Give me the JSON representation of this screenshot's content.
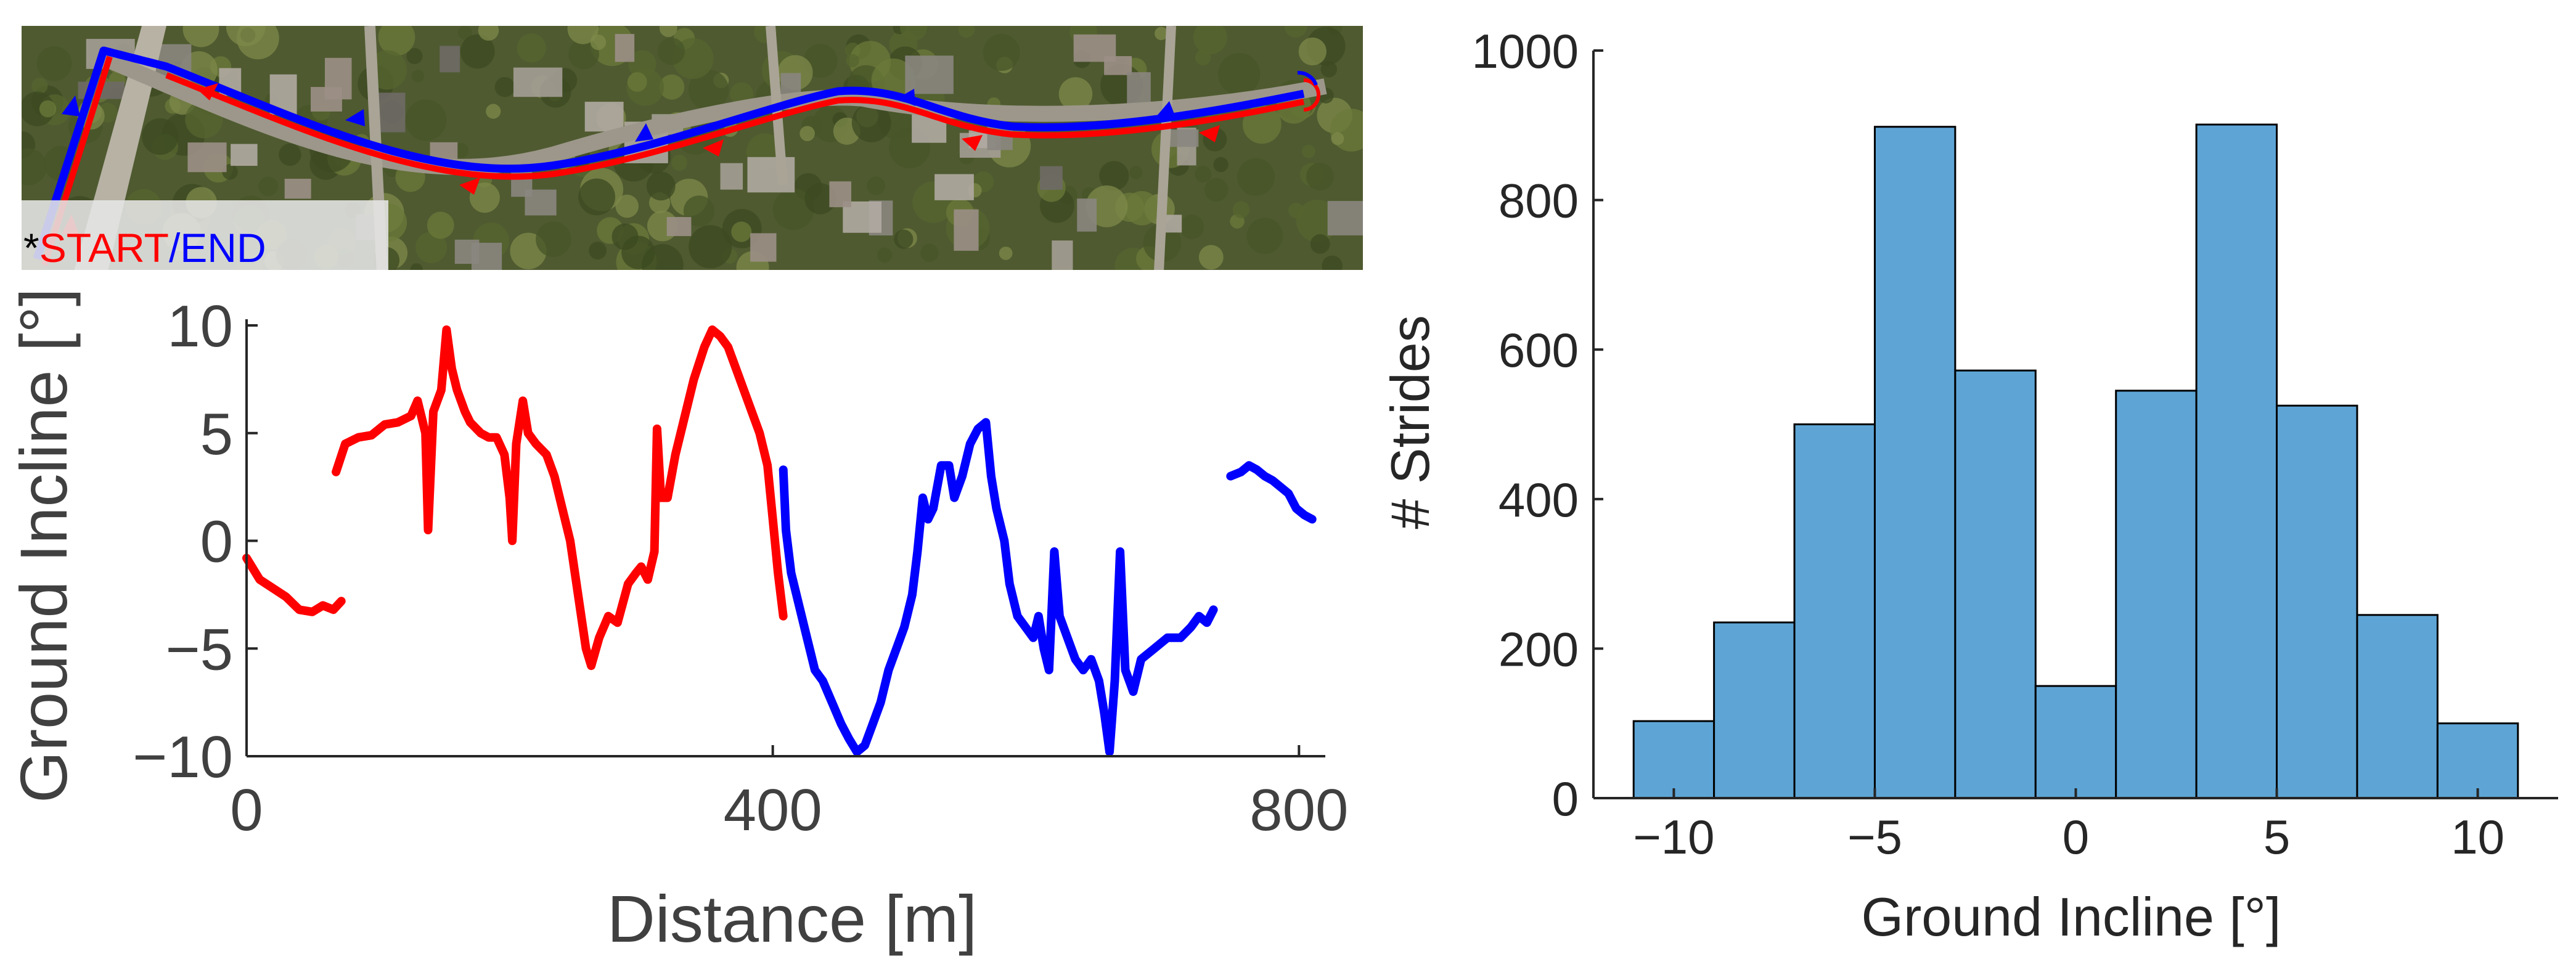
{
  "colors": {
    "outbound": "#ff0000",
    "return": "#0000ff",
    "histogram_fill": "#5ea5d6",
    "histogram_edge": "#000000",
    "axis": "#262626",
    "label": "#404040"
  },
  "map_inset": {
    "start_marker": "*",
    "start_label": "START",
    "separator": "/",
    "end_label": "END"
  },
  "chart_data": [
    {
      "type": "line",
      "title": "",
      "xlabel": "Distance [m]",
      "ylabel": "Ground Incline [°]",
      "xlim": [
        0,
        820
      ],
      "ylim": [
        -10,
        10
      ],
      "xticks": [
        0,
        400,
        800
      ],
      "xtick_labels": [
        "0",
        "400",
        "800"
      ],
      "yticks": [
        -10,
        -5,
        0,
        5,
        10
      ],
      "ytick_labels": [
        "−10",
        "−5",
        "0",
        "5",
        "10"
      ],
      "grid": false,
      "series": [
        {
          "color_key": "outbound",
          "segments": [
            [
              [
                0,
                -0.8
              ],
              [
                10,
                -1.8
              ],
              [
                20,
                -2.2
              ],
              [
                30,
                -2.6
              ],
              [
                40,
                -3.2
              ],
              [
                50,
                -3.3
              ],
              [
                58,
                -3.0
              ],
              [
                66,
                -3.2
              ],
              [
                72,
                -2.8
              ]
            ],
            [
              [
                68,
                3.2
              ],
              [
                75,
                4.5
              ],
              [
                85,
                4.8
              ],
              [
                95,
                4.9
              ],
              [
                105,
                5.4
              ],
              [
                115,
                5.5
              ],
              [
                125,
                5.8
              ],
              [
                130,
                6.5
              ],
              [
                136,
                5.0
              ],
              [
                138,
                0.5
              ],
              [
                142,
                6.0
              ],
              [
                148,
                7.0
              ],
              [
                152,
                9.8
              ],
              [
                156,
                8.0
              ],
              [
                160,
                7.0
              ],
              [
                166,
                6.0
              ],
              [
                170,
                5.5
              ],
              [
                178,
                5.0
              ],
              [
                184,
                4.8
              ],
              [
                190,
                4.8
              ],
              [
                196,
                4.0
              ],
              [
                200,
                2.0
              ],
              [
                202,
                0.0
              ],
              [
                205,
                4.5
              ],
              [
                210,
                6.5
              ],
              [
                214,
                5.0
              ],
              [
                220,
                4.5
              ],
              [
                228,
                4.0
              ],
              [
                234,
                3.0
              ],
              [
                240,
                1.5
              ],
              [
                246,
                0.0
              ],
              [
                252,
                -2.5
              ],
              [
                258,
                -5.0
              ],
              [
                262,
                -5.8
              ],
              [
                268,
                -4.5
              ],
              [
                275,
                -3.5
              ],
              [
                282,
                -3.8
              ],
              [
                290,
                -2.0
              ],
              [
                296,
                -1.5
              ],
              [
                300,
                -1.2
              ],
              [
                305,
                -1.8
              ],
              [
                310,
                -0.5
              ],
              [
                312,
                5.2
              ],
              [
                315,
                2.0
              ],
              [
                320,
                2.0
              ],
              [
                326,
                4.0
              ],
              [
                332,
                5.5
              ],
              [
                340,
                7.5
              ],
              [
                348,
                9.0
              ],
              [
                354,
                9.8
              ],
              [
                360,
                9.5
              ],
              [
                366,
                9.0
              ],
              [
                372,
                8.0
              ],
              [
                378,
                7.0
              ],
              [
                384,
                6.0
              ],
              [
                390,
                5.0
              ],
              [
                396,
                3.5
              ],
              [
                400,
                1.0
              ],
              [
                404,
                -1.5
              ],
              [
                408,
                -3.5
              ]
            ]
          ]
        },
        {
          "color_key": "return",
          "segments": [
            [
              [
                408,
                3.3
              ],
              [
                410,
                0.5
              ],
              [
                414,
                -1.5
              ],
              [
                420,
                -3.0
              ],
              [
                426,
                -4.5
              ],
              [
                432,
                -6.0
              ],
              [
                438,
                -6.5
              ],
              [
                445,
                -7.5
              ],
              [
                452,
                -8.5
              ],
              [
                458,
                -9.2
              ],
              [
                464,
                -9.8
              ],
              [
                470,
                -9.5
              ],
              [
                476,
                -8.5
              ],
              [
                482,
                -7.5
              ],
              [
                488,
                -6.0
              ],
              [
                494,
                -5.0
              ],
              [
                500,
                -4.0
              ],
              [
                506,
                -2.5
              ],
              [
                510,
                -0.5
              ],
              [
                514,
                2.0
              ],
              [
                518,
                1.0
              ],
              [
                522,
                1.5
              ],
              [
                528,
                3.5
              ],
              [
                534,
                3.5
              ],
              [
                538,
                2.0
              ],
              [
                544,
                3.0
              ],
              [
                550,
                4.5
              ],
              [
                556,
                5.2
              ],
              [
                562,
                5.5
              ],
              [
                566,
                3.0
              ],
              [
                570,
                1.5
              ],
              [
                576,
                0.0
              ],
              [
                580,
                -2.0
              ],
              [
                586,
                -3.5
              ],
              [
                592,
                -4.0
              ],
              [
                598,
                -4.5
              ],
              [
                602,
                -3.5
              ],
              [
                606,
                -5.0
              ],
              [
                610,
                -6.0
              ],
              [
                614,
                -0.5
              ],
              [
                618,
                -3.5
              ],
              [
                624,
                -4.5
              ],
              [
                630,
                -5.5
              ],
              [
                636,
                -6.0
              ],
              [
                642,
                -5.5
              ],
              [
                648,
                -6.5
              ],
              [
                652,
                -8.0
              ],
              [
                656,
                -9.8
              ],
              [
                660,
                -6.5
              ],
              [
                664,
                -0.5
              ],
              [
                668,
                -6.0
              ],
              [
                674,
                -7.0
              ],
              [
                680,
                -5.5
              ],
              [
                690,
                -5.0
              ],
              [
                700,
                -4.5
              ],
              [
                710,
                -4.5
              ],
              [
                718,
                -4.0
              ],
              [
                724,
                -3.5
              ],
              [
                730,
                -3.8
              ],
              [
                735,
                -3.2
              ]
            ],
            [
              [
                748,
                3.0
              ],
              [
                756,
                3.2
              ],
              [
                762,
                3.5
              ],
              [
                768,
                3.3
              ],
              [
                774,
                3.0
              ],
              [
                780,
                2.8
              ],
              [
                786,
                2.5
              ],
              [
                792,
                2.2
              ],
              [
                798,
                1.5
              ],
              [
                804,
                1.2
              ],
              [
                810,
                1.0
              ]
            ]
          ]
        }
      ]
    },
    {
      "type": "bar",
      "title": "",
      "xlabel": "Ground Incline [°]",
      "ylabel": "# Strides",
      "bin_edges": [
        -11,
        -9,
        -7,
        -5,
        -3,
        -1,
        1,
        3,
        5,
        7,
        9,
        11
      ],
      "values": [
        103,
        235,
        500,
        898,
        572,
        150,
        545,
        901,
        525,
        245,
        100
      ],
      "xlim": [
        -12,
        12
      ],
      "ylim": [
        0,
        1000
      ],
      "xticks": [
        -10,
        -5,
        0,
        5,
        10
      ],
      "xtick_labels": [
        "−10",
        "−5",
        "0",
        "5",
        "10"
      ],
      "yticks": [
        0,
        200,
        400,
        600,
        800,
        1000
      ],
      "ytick_labels": [
        "0",
        "200",
        "400",
        "600",
        "800",
        "1000"
      ],
      "grid": false
    }
  ]
}
